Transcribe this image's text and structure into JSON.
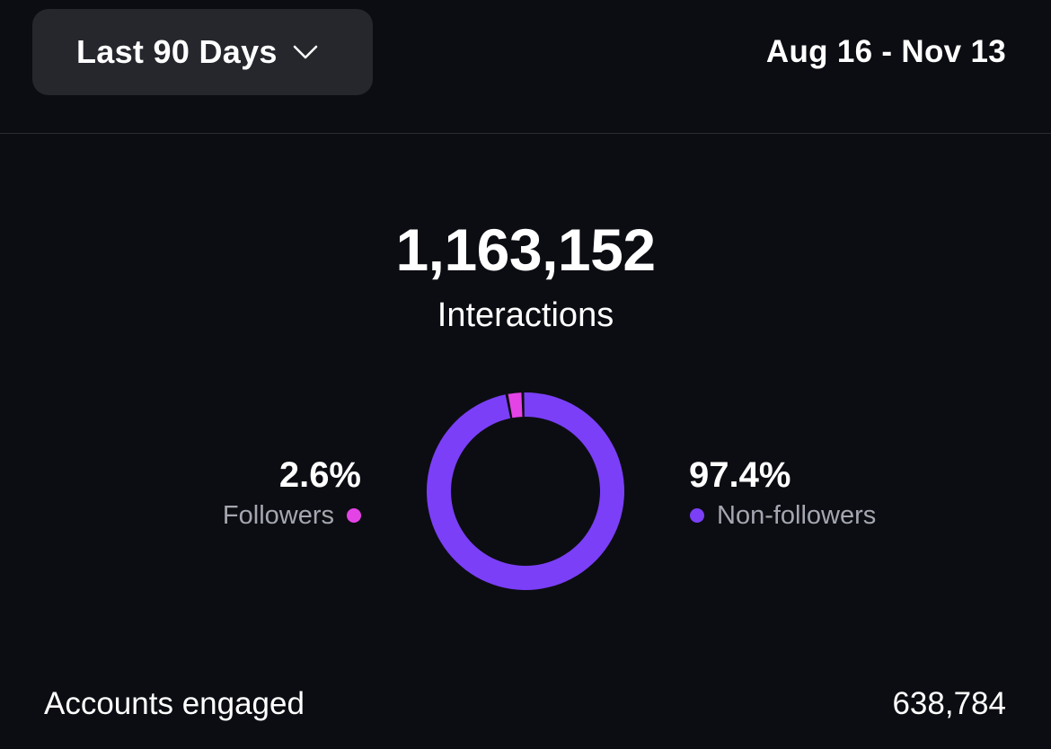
{
  "header": {
    "range_label": "Last 90 Days",
    "date_range": "Aug 16 - Nov 13"
  },
  "summary": {
    "total": "1,163,152",
    "total_label": "Interactions"
  },
  "chart_data": {
    "type": "pie",
    "series": [
      {
        "name": "Followers",
        "value": 2.6,
        "display": "2.6%",
        "color": "#e443e6"
      },
      {
        "name": "Non-followers",
        "value": 97.4,
        "display": "97.4%",
        "color": "#7b3ff8"
      }
    ]
  },
  "metrics": [
    {
      "label": "Accounts engaged",
      "value": "638,784"
    }
  ],
  "colors": {
    "background": "#0c0d12",
    "button_bg": "#25272d",
    "followers": "#e443e6",
    "non_followers": "#7b3ff8"
  },
  "icons": {
    "range_dropdown": "chevron-down-icon"
  }
}
